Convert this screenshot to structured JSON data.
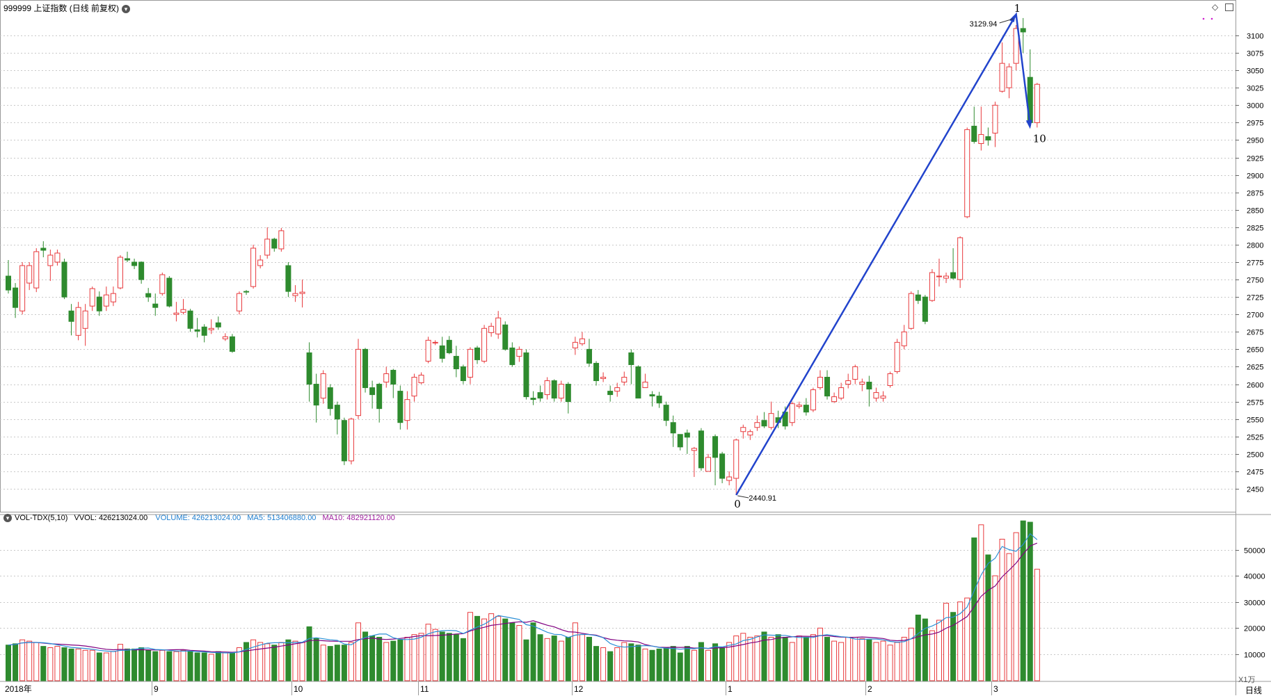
{
  "header": {
    "title": "999999 上证指数 (日线 前复权)",
    "dropdown_icon": "chevron-down-icon",
    "right_icons": [
      "diamond-icon",
      "window-icon"
    ]
  },
  "volume_header": {
    "title": "VOL-TDX(5,10)",
    "vvol": "VVOL: 426213024.00",
    "volume": "VOLUME: 426213024.00",
    "ma5": "MA5: 513406880.00",
    "ma10": "MA10: 482921120.00"
  },
  "colors": {
    "up": "#e8393c",
    "down": "#2e8b2e",
    "ma5": "#2b8fd6",
    "ma10": "#800080",
    "wave": "#2244cc",
    "grid": "#c8c8c8",
    "volume_label": "#1f7fd0",
    "ma5_label": "#1f7fd0",
    "ma10_label": "#a020a0"
  },
  "annotations": {
    "high_value": "3129.94",
    "low_value": "2440.91",
    "wave_labels": [
      "0",
      "1",
      "10"
    ]
  },
  "footer": {
    "period": "日线",
    "volume_unit": "X1万",
    "months": [
      "2018年",
      "9",
      "10",
      "11",
      "12",
      "1",
      "2",
      "3"
    ]
  },
  "chart_data": [
    {
      "type": "candlestick",
      "title": "999999 上证指数",
      "ylim": [
        2425,
        3150
      ],
      "yticks": [
        2450,
        2475,
        2500,
        2525,
        2550,
        2575,
        2600,
        2625,
        2650,
        2675,
        2700,
        2725,
        2750,
        2775,
        2800,
        2825,
        2850,
        2875,
        2900,
        2925,
        2950,
        2975,
        3000,
        3025,
        3050,
        3075,
        3100
      ],
      "grid": true,
      "candles": [
        [
          2755,
          2735,
          2778,
          2730
        ],
        [
          2738,
          2710,
          2745,
          2695
        ],
        [
          2705,
          2770,
          2775,
          2700
        ],
        [
          2745,
          2770,
          2775,
          2735
        ],
        [
          2738,
          2790,
          2795,
          2732
        ],
        [
          2795,
          2792,
          2805,
          2782
        ],
        [
          2770,
          2785,
          2793,
          2748
        ],
        [
          2775,
          2788,
          2793,
          2770
        ],
        [
          2775,
          2725,
          2780,
          2722
        ],
        [
          2705,
          2690,
          2715,
          2670
        ],
        [
          2670,
          2710,
          2718,
          2663
        ],
        [
          2680,
          2705,
          2715,
          2655
        ],
        [
          2712,
          2737,
          2740,
          2705
        ],
        [
          2725,
          2705,
          2733,
          2698
        ],
        [
          2712,
          2728,
          2740,
          2705
        ],
        [
          2718,
          2730,
          2740,
          2712
        ],
        [
          2738,
          2782,
          2785,
          2736
        ],
        [
          2780,
          2778,
          2790,
          2775
        ],
        [
          2775,
          2770,
          2780,
          2765
        ],
        [
          2775,
          2750,
          2776,
          2744
        ],
        [
          2730,
          2725,
          2738,
          2718
        ],
        [
          2715,
          2710,
          2730,
          2698
        ],
        [
          2730,
          2757,
          2760,
          2727
        ],
        [
          2752,
          2712,
          2755,
          2710
        ],
        [
          2700,
          2702,
          2718,
          2690
        ],
        [
          2703,
          2707,
          2722,
          2700
        ],
        [
          2705,
          2680,
          2708,
          2675
        ],
        [
          2678,
          2676,
          2695,
          2667
        ],
        [
          2682,
          2670,
          2686,
          2660
        ],
        [
          2678,
          2680,
          2693,
          2672
        ],
        [
          2688,
          2682,
          2697,
          2678
        ],
        [
          2665,
          2668,
          2673,
          2662
        ],
        [
          2668,
          2647,
          2672,
          2645
        ],
        [
          2705,
          2730,
          2733,
          2700
        ],
        [
          2733,
          2732,
          2735,
          2728
        ],
        [
          2740,
          2795,
          2800,
          2737
        ],
        [
          2770,
          2778,
          2785,
          2766
        ],
        [
          2785,
          2808,
          2825,
          2780
        ],
        [
          2808,
          2795,
          2810,
          2790
        ],
        [
          2794,
          2820,
          2824,
          2790
        ],
        [
          2770,
          2733,
          2775,
          2725
        ],
        [
          2727,
          2730,
          2742,
          2718
        ],
        [
          2730,
          2732,
          2750,
          2710
        ],
        [
          2645,
          2600,
          2660,
          2575
        ],
        [
          2600,
          2570,
          2615,
          2545
        ],
        [
          2580,
          2615,
          2620,
          2572
        ],
        [
          2595,
          2565,
          2600,
          2555
        ],
        [
          2570,
          2550,
          2575,
          2528
        ],
        [
          2548,
          2490,
          2552,
          2484
        ],
        [
          2490,
          2550,
          2552,
          2485
        ],
        [
          2555,
          2650,
          2665,
          2550
        ],
        [
          2650,
          2595,
          2652,
          2588
        ],
        [
          2595,
          2585,
          2605,
          2565
        ],
        [
          2600,
          2565,
          2602,
          2545
        ],
        [
          2603,
          2615,
          2625,
          2595
        ],
        [
          2620,
          2600,
          2622,
          2580
        ],
        [
          2590,
          2545,
          2598,
          2535
        ],
        [
          2548,
          2578,
          2590,
          2535
        ],
        [
          2583,
          2610,
          2615,
          2575
        ],
        [
          2602,
          2613,
          2617,
          2600
        ],
        [
          2633,
          2663,
          2668,
          2630
        ],
        [
          2660,
          2660,
          2663,
          2656
        ],
        [
          2655,
          2637,
          2668,
          2631
        ],
        [
          2663,
          2645,
          2669,
          2643
        ],
        [
          2640,
          2622,
          2655,
          2610
        ],
        [
          2625,
          2605,
          2628,
          2600
        ],
        [
          2610,
          2650,
          2653,
          2600
        ],
        [
          2652,
          2635,
          2655,
          2629
        ],
        [
          2633,
          2680,
          2685,
          2630
        ],
        [
          2674,
          2683,
          2688,
          2668
        ],
        [
          2672,
          2695,
          2705,
          2665
        ],
        [
          2685,
          2650,
          2690,
          2648
        ],
        [
          2652,
          2628,
          2660,
          2625
        ],
        [
          2640,
          2650,
          2654,
          2632
        ],
        [
          2645,
          2582,
          2650,
          2578
        ],
        [
          2580,
          2578,
          2590,
          2570
        ],
        [
          2588,
          2580,
          2598,
          2575
        ],
        [
          2585,
          2605,
          2610,
          2578
        ],
        [
          2605,
          2580,
          2607,
          2575
        ],
        [
          2580,
          2600,
          2605,
          2575
        ],
        [
          2600,
          2575,
          2603,
          2558
        ],
        [
          2652,
          2660,
          2668,
          2642
        ],
        [
          2658,
          2665,
          2675,
          2655
        ],
        [
          2650,
          2630,
          2665,
          2625
        ],
        [
          2630,
          2605,
          2633,
          2598
        ],
        [
          2608,
          2610,
          2617,
          2603
        ],
        [
          2590,
          2585,
          2598,
          2575
        ],
        [
          2590,
          2595,
          2602,
          2582
        ],
        [
          2603,
          2610,
          2618,
          2598
        ],
        [
          2645,
          2628,
          2650,
          2600
        ],
        [
          2625,
          2580,
          2627,
          2580
        ],
        [
          2595,
          2603,
          2615,
          2595
        ],
        [
          2585,
          2583,
          2590,
          2568
        ],
        [
          2583,
          2573,
          2589,
          2566
        ],
        [
          2570,
          2548,
          2575,
          2540
        ],
        [
          2545,
          2530,
          2555,
          2510
        ],
        [
          2528,
          2510,
          2528,
          2505
        ],
        [
          2530,
          2524,
          2535,
          2500
        ],
        [
          2505,
          2508,
          2510,
          2467
        ],
        [
          2533,
          2480,
          2537,
          2476
        ],
        [
          2475,
          2495,
          2500,
          2475
        ],
        [
          2525,
          2495,
          2528,
          2455
        ],
        [
          2500,
          2465,
          2503,
          2458
        ],
        [
          2462,
          2467,
          2475,
          2455
        ],
        [
          2465,
          2520,
          2522,
          2441
        ],
        [
          2532,
          2538,
          2542,
          2522
        ],
        [
          2527,
          2532,
          2535,
          2520
        ],
        [
          2538,
          2545,
          2555,
          2533
        ],
        [
          2548,
          2540,
          2560,
          2537
        ],
        [
          2538,
          2558,
          2575,
          2535
        ],
        [
          2552,
          2545,
          2562,
          2537
        ],
        [
          2560,
          2540,
          2568,
          2535
        ],
        [
          2545,
          2572,
          2575,
          2540
        ],
        [
          2568,
          2570,
          2575,
          2565
        ],
        [
          2570,
          2560,
          2580,
          2555
        ],
        [
          2563,
          2592,
          2595,
          2560
        ],
        [
          2595,
          2610,
          2620,
          2592
        ],
        [
          2610,
          2583,
          2620,
          2578
        ],
        [
          2575,
          2582,
          2588,
          2573
        ],
        [
          2580,
          2595,
          2602,
          2577
        ],
        [
          2600,
          2605,
          2615,
          2594
        ],
        [
          2607,
          2625,
          2628,
          2600
        ],
        [
          2600,
          2603,
          2608,
          2590
        ],
        [
          2603,
          2593,
          2612,
          2568
        ],
        [
          2580,
          2588,
          2595,
          2575
        ],
        [
          2580,
          2583,
          2590,
          2575
        ],
        [
          2598,
          2615,
          2618,
          2595
        ],
        [
          2618,
          2660,
          2665,
          2615
        ],
        [
          2655,
          2675,
          2685,
          2650
        ],
        [
          2680,
          2730,
          2733,
          2678
        ],
        [
          2728,
          2720,
          2735,
          2715
        ],
        [
          2725,
          2690,
          2728,
          2686
        ],
        [
          2720,
          2760,
          2765,
          2718
        ],
        [
          2755,
          2755,
          2780,
          2740
        ],
        [
          2752,
          2755,
          2760,
          2745
        ],
        [
          2760,
          2752,
          2795,
          2750
        ],
        [
          2750,
          2810,
          2812,
          2738
        ],
        [
          2840,
          2965,
          2968,
          2838
        ],
        [
          2970,
          2948,
          2998,
          2945
        ],
        [
          2945,
          2958,
          2998,
          2935
        ],
        [
          2955,
          2950,
          2968,
          2942
        ],
        [
          2960,
          3000,
          3005,
          2940
        ],
        [
          3020,
          3060,
          3090,
          3018
        ],
        [
          3025,
          3055,
          3060,
          3010
        ],
        [
          3060,
          3110,
          3115,
          3050
        ],
        [
          3110,
          3105,
          3125,
          3075
        ],
        [
          3040,
          2975,
          3080,
          2968
        ],
        [
          2975,
          3030,
          3032,
          2968
        ]
      ]
    },
    {
      "type": "bar",
      "title": "VOL-TDX(5,10)",
      "unit": "X1万",
      "ylim": [
        0,
        60000
      ],
      "yticks": [
        10000,
        20000,
        30000,
        40000,
        50000
      ],
      "volumes": [
        13500,
        14000,
        15500,
        15000,
        14500,
        13000,
        12500,
        13000,
        12500,
        12000,
        12000,
        11500,
        11500,
        10500,
        10500,
        11000,
        13800,
        12000,
        12000,
        12500,
        11500,
        11000,
        11500,
        11000,
        11000,
        11500,
        11000,
        10500,
        10500,
        10000,
        11000,
        10500,
        10500,
        12500,
        14500,
        15500,
        14500,
        14000,
        13500,
        14500,
        15500,
        15000,
        14500,
        20500,
        16000,
        13500,
        13000,
        13500,
        13500,
        14500,
        22000,
        18500,
        17000,
        16500,
        14500,
        15000,
        15500,
        16500,
        17500,
        18000,
        21500,
        19500,
        18500,
        18000,
        17500,
        16000,
        26000,
        24500,
        23500,
        25500,
        24500,
        23500,
        22000,
        21000,
        15500,
        22000,
        17500,
        16000,
        17000,
        15000,
        16500,
        22000,
        17500,
        16500,
        13000,
        12500,
        11000,
        12500,
        14500,
        14000,
        13500,
        12000,
        11500,
        12000,
        12500,
        13000,
        10500,
        13000,
        11500,
        14500,
        11500,
        14000,
        12500,
        14500,
        17000,
        18000,
        16500,
        17000,
        18500,
        16500,
        17500,
        16500,
        14500,
        17000,
        16500,
        17500,
        20000,
        16500,
        15000,
        14500,
        16500,
        16500,
        16000,
        15500,
        14500,
        15000,
        13500,
        14500,
        16500,
        20000,
        25000,
        23500,
        19000,
        23000,
        29500,
        26000,
        30000,
        31500,
        54500,
        59500,
        48000,
        40000,
        54000,
        48500,
        56500,
        61000,
        60500,
        42500
      ],
      "ma5_label": "MA5: 513406880.00",
      "ma10_label": "MA10: 482921120.00"
    }
  ]
}
